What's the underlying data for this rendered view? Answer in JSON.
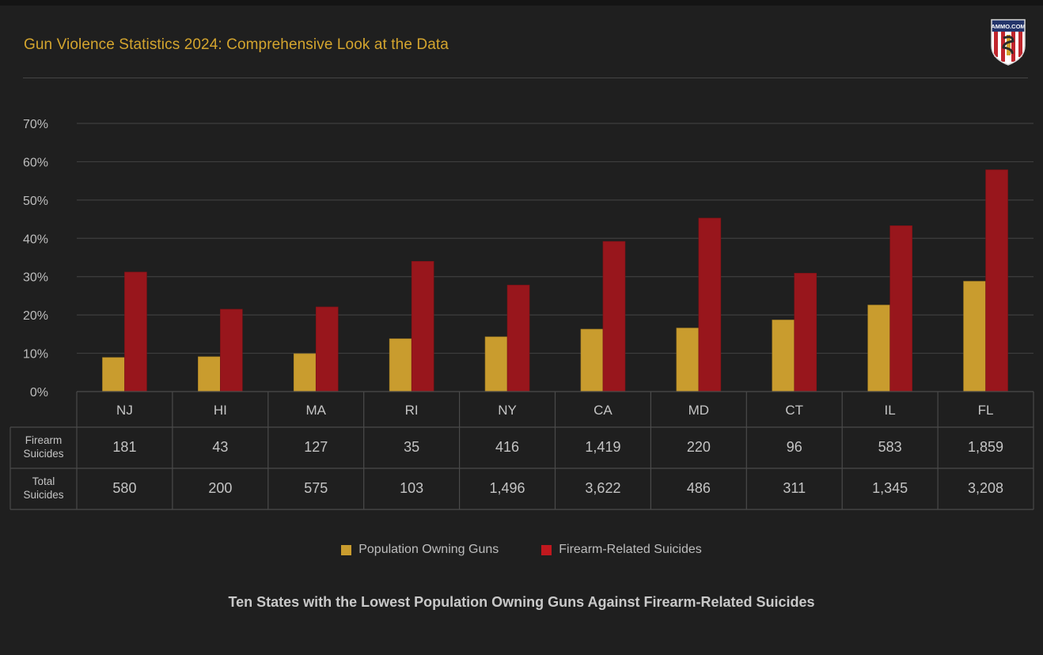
{
  "header": {
    "title": "Gun Violence Statistics 2024: Comprehensive Look at the Data",
    "logo_text": "AMMO.COM"
  },
  "colors": {
    "background": "#1f1f1f",
    "title": "#d4a52e",
    "gold": "#c99c2e",
    "red": "#98161c",
    "grid": "#3e3e3e",
    "text": "#c4c4c4"
  },
  "chart_data": {
    "type": "bar",
    "title": "Ten States with the Lowest Population Owning Guns Against Firearm-Related Suicides",
    "xlabel": "",
    "ylabel": "",
    "ylim": [
      0,
      70
    ],
    "y_ticks": [
      "0%",
      "10%",
      "20%",
      "30%",
      "40%",
      "50%",
      "60%",
      "70%"
    ],
    "y_tick_values": [
      0,
      10,
      20,
      30,
      40,
      50,
      60,
      70
    ],
    "grid": true,
    "legend_position": "bottom",
    "categories": [
      "NJ",
      "HI",
      "MA",
      "RI",
      "NY",
      "CA",
      "MD",
      "CT",
      "IL",
      "FL"
    ],
    "series": [
      {
        "name": "Population Owning Guns",
        "color": "#c99c2e",
        "values": [
          8.9,
          9.1,
          9.9,
          13.8,
          14.3,
          16.3,
          16.6,
          18.7,
          22.6,
          28.8
        ]
      },
      {
        "name": "Firearm-Related Suicides",
        "color": "#98161c",
        "values": [
          31.2,
          21.5,
          22.1,
          34.0,
          27.8,
          39.2,
          45.3,
          30.9,
          43.3,
          57.9
        ]
      }
    ],
    "table": {
      "rows": [
        {
          "label_line1": "Firearm",
          "label_line2": "Suicides",
          "values": [
            "181",
            "43",
            "127",
            "35",
            "416",
            "1,419",
            "220",
            "96",
            "583",
            "1,859"
          ]
        },
        {
          "label_line1": "Total",
          "label_line2": "Suicides",
          "values": [
            "580",
            "200",
            "575",
            "103",
            "1,496",
            "3,622",
            "486",
            "311",
            "1,345",
            "3,208"
          ]
        }
      ]
    }
  },
  "legend": {
    "items": [
      {
        "label": "Population Owning Guns",
        "color": "#c99c2e"
      },
      {
        "label": "Firearm-Related Suicides",
        "color": "#c0181e"
      }
    ]
  }
}
